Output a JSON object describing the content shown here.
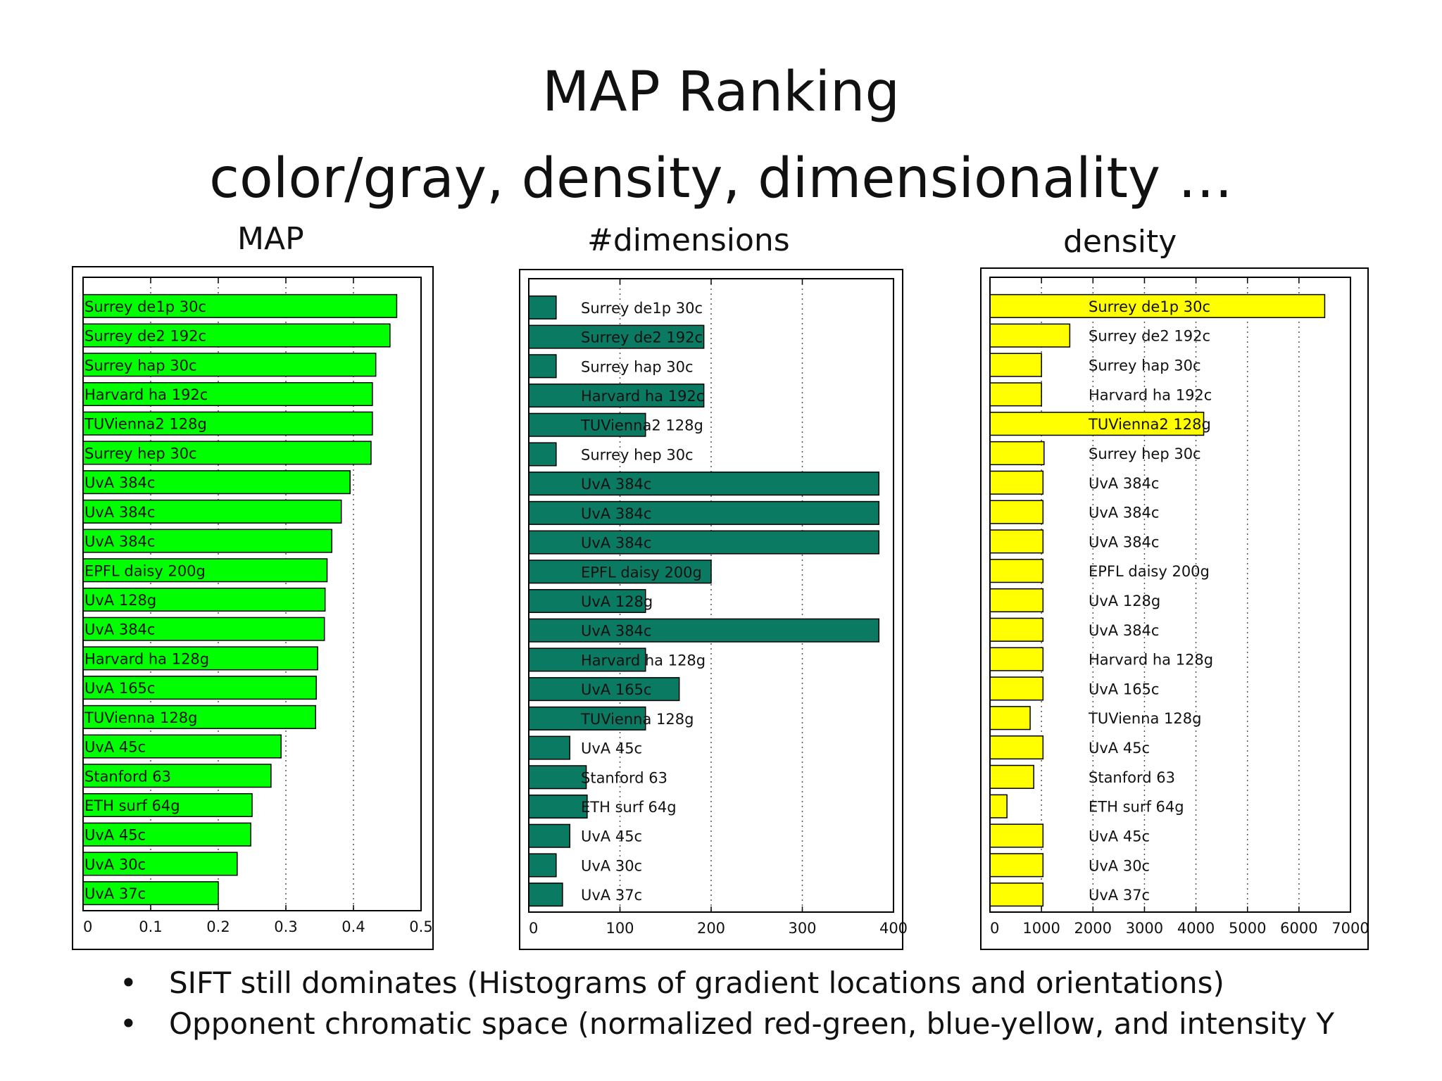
{
  "slide": {
    "title": "MAP Ranking",
    "subtitle": "color/gray, density, dimensionality …",
    "bullets": [
      "SIFT still dominates (Histograms of gradient locations and orientations)",
      "Opponent chromatic space (normalized red-green, blue-yellow, and intensity Y"
    ],
    "bullet_symbol": "•"
  },
  "chart_data": [
    {
      "type": "bar",
      "orientation": "horizontal",
      "title": "MAP",
      "categories": [
        "Surrey de1p 30c",
        "Surrey de2 192c",
        "Surrey hap 30c",
        "Harvard ha 192c",
        "TUVienna2 128g",
        "Surrey hep 30c",
        "UvA 384c",
        "UvA 384c",
        "UvA 384c",
        "EPFL daisy 200g",
        "UvA 128g",
        "UvA 384c",
        "Harvard ha 128g",
        "UvA 165c",
        "TUVienna 128g",
        "UvA 45c",
        "Stanford 63",
        "ETH surf 64g",
        "UvA 45c",
        "UvA 30c",
        "UvA 37c"
      ],
      "values": [
        0.464,
        0.454,
        0.433,
        0.428,
        0.428,
        0.426,
        0.395,
        0.382,
        0.368,
        0.361,
        0.358,
        0.357,
        0.347,
        0.345,
        0.344,
        0.293,
        0.278,
        0.25,
        0.248,
        0.228,
        0.2
      ],
      "xlim": [
        0,
        0.5
      ],
      "xticks": [
        0,
        0.1,
        0.2,
        0.3,
        0.4,
        0.5
      ],
      "xtick_labels": [
        "0",
        "0.1",
        "0.2",
        "0.3",
        "0.4",
        "0.5"
      ],
      "grid": "vertical dotted",
      "bar_color": "#00ff00"
    },
    {
      "type": "bar",
      "orientation": "horizontal",
      "title": "#dimensions",
      "categories": [
        "Surrey de1p 30c",
        "Surrey de2 192c",
        "Surrey hap 30c",
        "Harvard ha 192c",
        "TUVienna2 128g",
        "Surrey hep 30c",
        "UvA 384c",
        "UvA 384c",
        "UvA 384c",
        "EPFL daisy 200g",
        "UvA 128g",
        "UvA 384c",
        "Harvard ha 128g",
        "UvA 165c",
        "TUVienna 128g",
        "UvA 45c",
        "Stanford 63",
        "ETH surf 64g",
        "UvA 45c",
        "UvA 30c",
        "UvA 37c"
      ],
      "values": [
        30,
        192,
        30,
        192,
        128,
        30,
        384,
        384,
        384,
        200,
        128,
        384,
        128,
        165,
        128,
        45,
        63,
        64,
        45,
        30,
        37
      ],
      "xlim": [
        0,
        400
      ],
      "xticks": [
        0,
        100,
        200,
        300,
        400
      ],
      "xtick_labels": [
        "0",
        "100",
        "200",
        "300",
        "400"
      ],
      "grid": "vertical dotted",
      "bar_color": "#0b7a63"
    },
    {
      "type": "bar",
      "orientation": "horizontal",
      "title": "density",
      "categories": [
        "Surrey de1p 30c",
        "Surrey de2 192c",
        "Surrey hap 30c",
        "Harvard ha 192c",
        "TUVienna2 128g",
        "Surrey hep 30c",
        "UvA 384c",
        "UvA 384c",
        "UvA 384c",
        "EPFL daisy 200g",
        "UvA 128g",
        "UvA 384c",
        "Harvard ha 128g",
        "UvA 165c",
        "TUVienna 128g",
        "UvA 45c",
        "Stanford 63",
        "ETH surf 64g",
        "UvA 45c",
        "UvA 30c",
        "UvA 37c"
      ],
      "values": [
        6500,
        1550,
        1000,
        1000,
        4150,
        1050,
        1030,
        1030,
        1030,
        1030,
        1030,
        1030,
        1030,
        1030,
        780,
        1030,
        850,
        330,
        1030,
        1030,
        1030
      ],
      "xlim": [
        0,
        7000
      ],
      "xticks": [
        0,
        1000,
        2000,
        3000,
        4000,
        5000,
        6000,
        7000
      ],
      "xtick_labels": [
        "0",
        "1000",
        "2000",
        "3000",
        "4000",
        "5000",
        "6000",
        "7000"
      ],
      "grid": "vertical dotted",
      "bar_color": "#ffff00"
    }
  ]
}
